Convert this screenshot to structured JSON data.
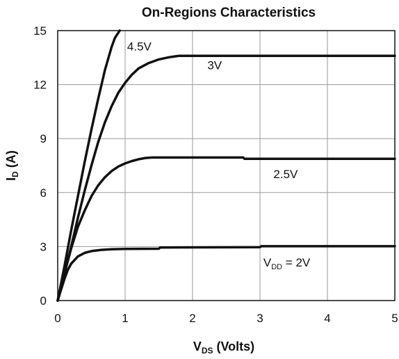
{
  "chart_data": {
    "type": "line",
    "title": "On-Regions Characteristics",
    "xlabel": {
      "main": "V",
      "sub": "DS",
      "suffix": " (Volts)"
    },
    "ylabel": {
      "main": "I",
      "sub": "D",
      "suffix": " (A)"
    },
    "xlim": [
      0,
      5
    ],
    "ylim": [
      0,
      15
    ],
    "xticks": [
      "0",
      "1",
      "2",
      "3",
      "4",
      "5"
    ],
    "yticks": [
      "0",
      "3",
      "6",
      "9",
      "12",
      "15"
    ],
    "grid": true,
    "colors": {
      "line": "#111111",
      "grid": "#9a9a9a",
      "axis": "#111111"
    },
    "series": [
      {
        "label": {
          "parts": [
            [
              "V",
              ""
            ],
            [
              "DD",
              "sub"
            ],
            [
              " = 2V",
              ""
            ]
          ],
          "at": [
            3.05,
            1.9
          ]
        },
        "points": [
          [
            0,
            0
          ],
          [
            0.05,
            0.6
          ],
          [
            0.1,
            1.2
          ],
          [
            0.15,
            1.7
          ],
          [
            0.2,
            2.05
          ],
          [
            0.3,
            2.45
          ],
          [
            0.4,
            2.65
          ],
          [
            0.5,
            2.75
          ],
          [
            0.65,
            2.82
          ],
          [
            0.8,
            2.85
          ],
          [
            1.0,
            2.87
          ],
          [
            1.5,
            2.88
          ],
          [
            1.52,
            2.95
          ],
          [
            3.0,
            2.97
          ],
          [
            3.02,
            3.02
          ],
          [
            5.0,
            3.02
          ]
        ]
      },
      {
        "label": {
          "parts": [
            [
              "2.5V",
              ""
            ]
          ],
          "at": [
            3.2,
            6.8
          ]
        },
        "points": [
          [
            0,
            0
          ],
          [
            0.1,
            1.5
          ],
          [
            0.2,
            2.9
          ],
          [
            0.3,
            4.1
          ],
          [
            0.4,
            5.0
          ],
          [
            0.5,
            5.8
          ],
          [
            0.6,
            6.4
          ],
          [
            0.7,
            6.85
          ],
          [
            0.8,
            7.2
          ],
          [
            0.9,
            7.45
          ],
          [
            1.0,
            7.62
          ],
          [
            1.1,
            7.75
          ],
          [
            1.2,
            7.85
          ],
          [
            1.3,
            7.92
          ],
          [
            1.4,
            7.95
          ],
          [
            2.75,
            7.95
          ],
          [
            2.77,
            7.88
          ],
          [
            5.0,
            7.88
          ]
        ]
      },
      {
        "label": {
          "parts": [
            [
              "3V",
              ""
            ]
          ],
          "at": [
            2.22,
            12.85
          ]
        },
        "points": [
          [
            0,
            0
          ],
          [
            0.1,
            1.5
          ],
          [
            0.2,
            3.0
          ],
          [
            0.3,
            4.6
          ],
          [
            0.4,
            6.1
          ],
          [
            0.5,
            7.5
          ],
          [
            0.6,
            8.8
          ],
          [
            0.7,
            9.9
          ],
          [
            0.8,
            10.8
          ],
          [
            0.9,
            11.55
          ],
          [
            1.0,
            12.1
          ],
          [
            1.1,
            12.55
          ],
          [
            1.2,
            12.9
          ],
          [
            1.35,
            13.2
          ],
          [
            1.5,
            13.4
          ],
          [
            1.65,
            13.52
          ],
          [
            1.8,
            13.6
          ],
          [
            5.0,
            13.6
          ]
        ]
      },
      {
        "label": {
          "parts": [
            [
              "4.5V",
              ""
            ]
          ],
          "at": [
            1.03,
            13.9
          ]
        },
        "points": [
          [
            0,
            0
          ],
          [
            0.1,
            1.9
          ],
          [
            0.2,
            3.9
          ],
          [
            0.3,
            5.8
          ],
          [
            0.4,
            7.7
          ],
          [
            0.5,
            9.5
          ],
          [
            0.6,
            11.2
          ],
          [
            0.7,
            12.8
          ],
          [
            0.8,
            14.1
          ],
          [
            0.85,
            14.6
          ],
          [
            0.92,
            15.0
          ]
        ]
      }
    ]
  }
}
